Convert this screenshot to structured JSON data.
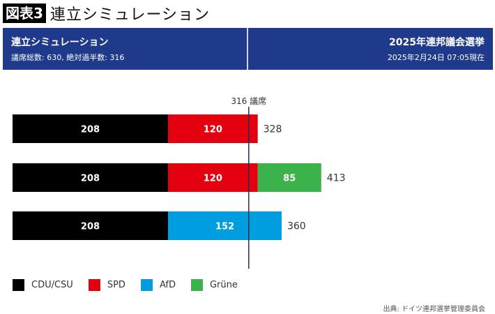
{
  "figure": {
    "badge": "図表3",
    "title": "連立シミュレーション"
  },
  "header": {
    "left_title": "連立シミュレーション",
    "left_subtitle": "議席総数: 630, 絶対過半数: 316",
    "right_title": "2025年連邦議会選挙",
    "right_subtitle": "2025年2月24日 07:05現在"
  },
  "chart_data": {
    "type": "bar",
    "orientation": "horizontal-stacked",
    "title": "連立シミュレーション",
    "threshold": {
      "value": 316,
      "label": "316 議席"
    },
    "xlim": [
      0,
      450
    ],
    "grid": false,
    "legend_position": "bottom-left",
    "parties": [
      {
        "name": "CDU/CSU",
        "color": "#000000"
      },
      {
        "name": "SPD",
        "color": "#e3000f"
      },
      {
        "name": "AfD",
        "color": "#009ee0"
      },
      {
        "name": "Grüne",
        "color": "#3cb34a"
      }
    ],
    "rows": [
      {
        "segments": [
          {
            "party": "CDU/CSU",
            "value": 208
          },
          {
            "party": "SPD",
            "value": 120
          }
        ],
        "total": 328
      },
      {
        "segments": [
          {
            "party": "CDU/CSU",
            "value": 208
          },
          {
            "party": "SPD",
            "value": 120
          },
          {
            "party": "Grüne",
            "value": 85
          }
        ],
        "total": 413
      },
      {
        "segments": [
          {
            "party": "CDU/CSU",
            "value": 208
          },
          {
            "party": "AfD",
            "value": 152
          }
        ],
        "total": 360
      }
    ]
  },
  "legend": [
    {
      "label": "CDU/CSU",
      "color": "#000000"
    },
    {
      "label": "SPD",
      "color": "#e3000f"
    },
    {
      "label": "AfD",
      "color": "#009ee0"
    },
    {
      "label": "Grüne",
      "color": "#3cb34a"
    }
  ],
  "source": "出典: ドイツ連邦選挙管理委員会"
}
